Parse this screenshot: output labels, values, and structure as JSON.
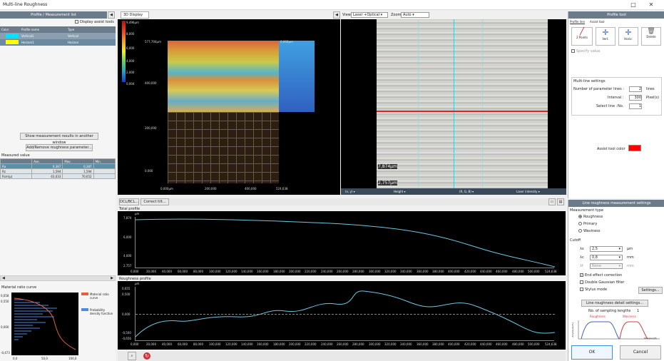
{
  "window": {
    "title": "Multi-line Roughness",
    "min": "—",
    "max": "□",
    "close": "✕"
  },
  "left": {
    "header": "Profile / Measurement list",
    "display_assist": "Display assist tools",
    "columns": [
      "Color",
      "Profile name",
      "Type"
    ],
    "profiles": [
      {
        "color": "#00e5ff",
        "name": "Vertical1",
        "type": "Vertical"
      },
      {
        "color": "#ffff00",
        "name": "Horizon1",
        "type": "Horizon"
      }
    ],
    "show_results_btn": "Show measurement results in another window",
    "add_remove_btn": "Add/Remove roughness parameter...",
    "measured_label": "Measured value",
    "mv_columns": [
      "",
      "Ave.",
      "Max.",
      "Min."
    ],
    "mv_rows": [
      [
        "Ra",
        "0,387",
        "0,387",
        ""
      ],
      [
        "Rz",
        "1,594",
        "1,594",
        ""
      ],
      [
        "Rsm(µ)",
        "63,033",
        "70,652",
        ""
      ]
    ],
    "mrc_title": "Material ratio curve",
    "mrc_yticks": [
      "0,658",
      "0,550",
      "0,000",
      "-0,473"
    ],
    "mrc_xticks": [
      "0,0",
      "50,0",
      "100,0"
    ],
    "mrc_legend": [
      {
        "label": "Material ratio curve",
        "color": "#e06040"
      },
      {
        "label": "Probability density function",
        "color": "#4a8adf"
      }
    ]
  },
  "display3d": {
    "tab": "3D Display",
    "scale": [
      "9,496µm",
      "8,000",
      "6,000",
      "4,000",
      "2,000",
      "0,004"
    ],
    "labels": {
      "a": "577,704µm",
      "b": "0,000µm",
      "c": "400,000",
      "d": "200,000",
      "e": "0,000"
    },
    "xaxis": [
      "0,000µm",
      "200,000",
      "400,000",
      "524,638"
    ]
  },
  "imageview": {
    "view_label": "View",
    "view_value": "Laser +Optical",
    "zoom_label": "Zoom",
    "zoom_value": "Auto",
    "scale1": "7,874µm",
    "scale2": "2,757µm",
    "footer": [
      "(x, y) ▾",
      "Height ▾",
      "(R, G, B) ▾",
      "Laser intensity ▾"
    ]
  },
  "profiletool": {
    "header": "Profile tool",
    "tabs": [
      "Profile line",
      "Assist tool"
    ],
    "tools": [
      "2 Points",
      "Vert.",
      "Horiz.",
      "Delete"
    ],
    "specify": "Specify value",
    "ml_title": "Multi-line settings",
    "num_label": "Number of parameter lines :",
    "num_value": "2",
    "num_unit": "lines",
    "interval_label": "Interval :",
    "interval_value": "300",
    "interval_unit": "Pixel(s)",
    "select_label": "Select line :",
    "select_no": "No.",
    "select_value": "1",
    "assist_color_label": "Assist tool color",
    "assist_color": "#ff0000"
  },
  "lower": {
    "btn_dcl": "DCL/BCL...",
    "btn_correct": "Correct tilt...",
    "total_title": "Total profile",
    "total_unit": "µm",
    "total_yticks": [
      "7,874",
      "6,000",
      "4,000",
      "2,757"
    ],
    "rough_title": "Roughness profile",
    "rough_unit": "µm",
    "rough_yticks": [
      "0,655",
      "0,500",
      "0,000",
      "-0,500",
      "-0,656"
    ],
    "xticks": [
      "0,000",
      "20,000",
      "40,000",
      "60,000",
      "80,000",
      "100,000",
      "120,000",
      "140,000",
      "160,000",
      "180,000",
      "200,000",
      "220,000",
      "240,000",
      "260,000",
      "280,000",
      "300,000",
      "320,000",
      "340,000",
      "360,000",
      "380,000",
      "400,000",
      "420,000",
      "440,000",
      "460,000",
      "480,000",
      "500,000",
      "524,638"
    ]
  },
  "settings": {
    "header": "Line roughness measurement settings",
    "mtype_label": "Measurement type",
    "mtypes": [
      "Roughness",
      "Primary",
      "Waviness"
    ],
    "mtype_selected": 0,
    "cutoff": "Cutoff",
    "lam_s_label": "λs",
    "lam_s_value": "2,5",
    "lam_s_unit": "µm",
    "lam_c_label": "λc",
    "lam_c_value": "0,8",
    "lam_c_unit": "mm",
    "lam_f_label": "λf",
    "lam_f_value": "None",
    "lam_f_unit": "mm",
    "end_effect": "End effect correction",
    "double_gauss": "Double Gaussian filter",
    "stylus": "Stylus mode",
    "settings_btn": "Settings...",
    "detail_btn": "Line roughness detail settings...",
    "sampling": "No. of sampling lengths",
    "sampling_value": "1",
    "roughness": "Roughness",
    "waviness": "Waviness",
    "amp_label": "Amplitude(%)",
    "wl_label": "Wavelength",
    "ok": "OK",
    "cancel": "Cancel"
  }
}
